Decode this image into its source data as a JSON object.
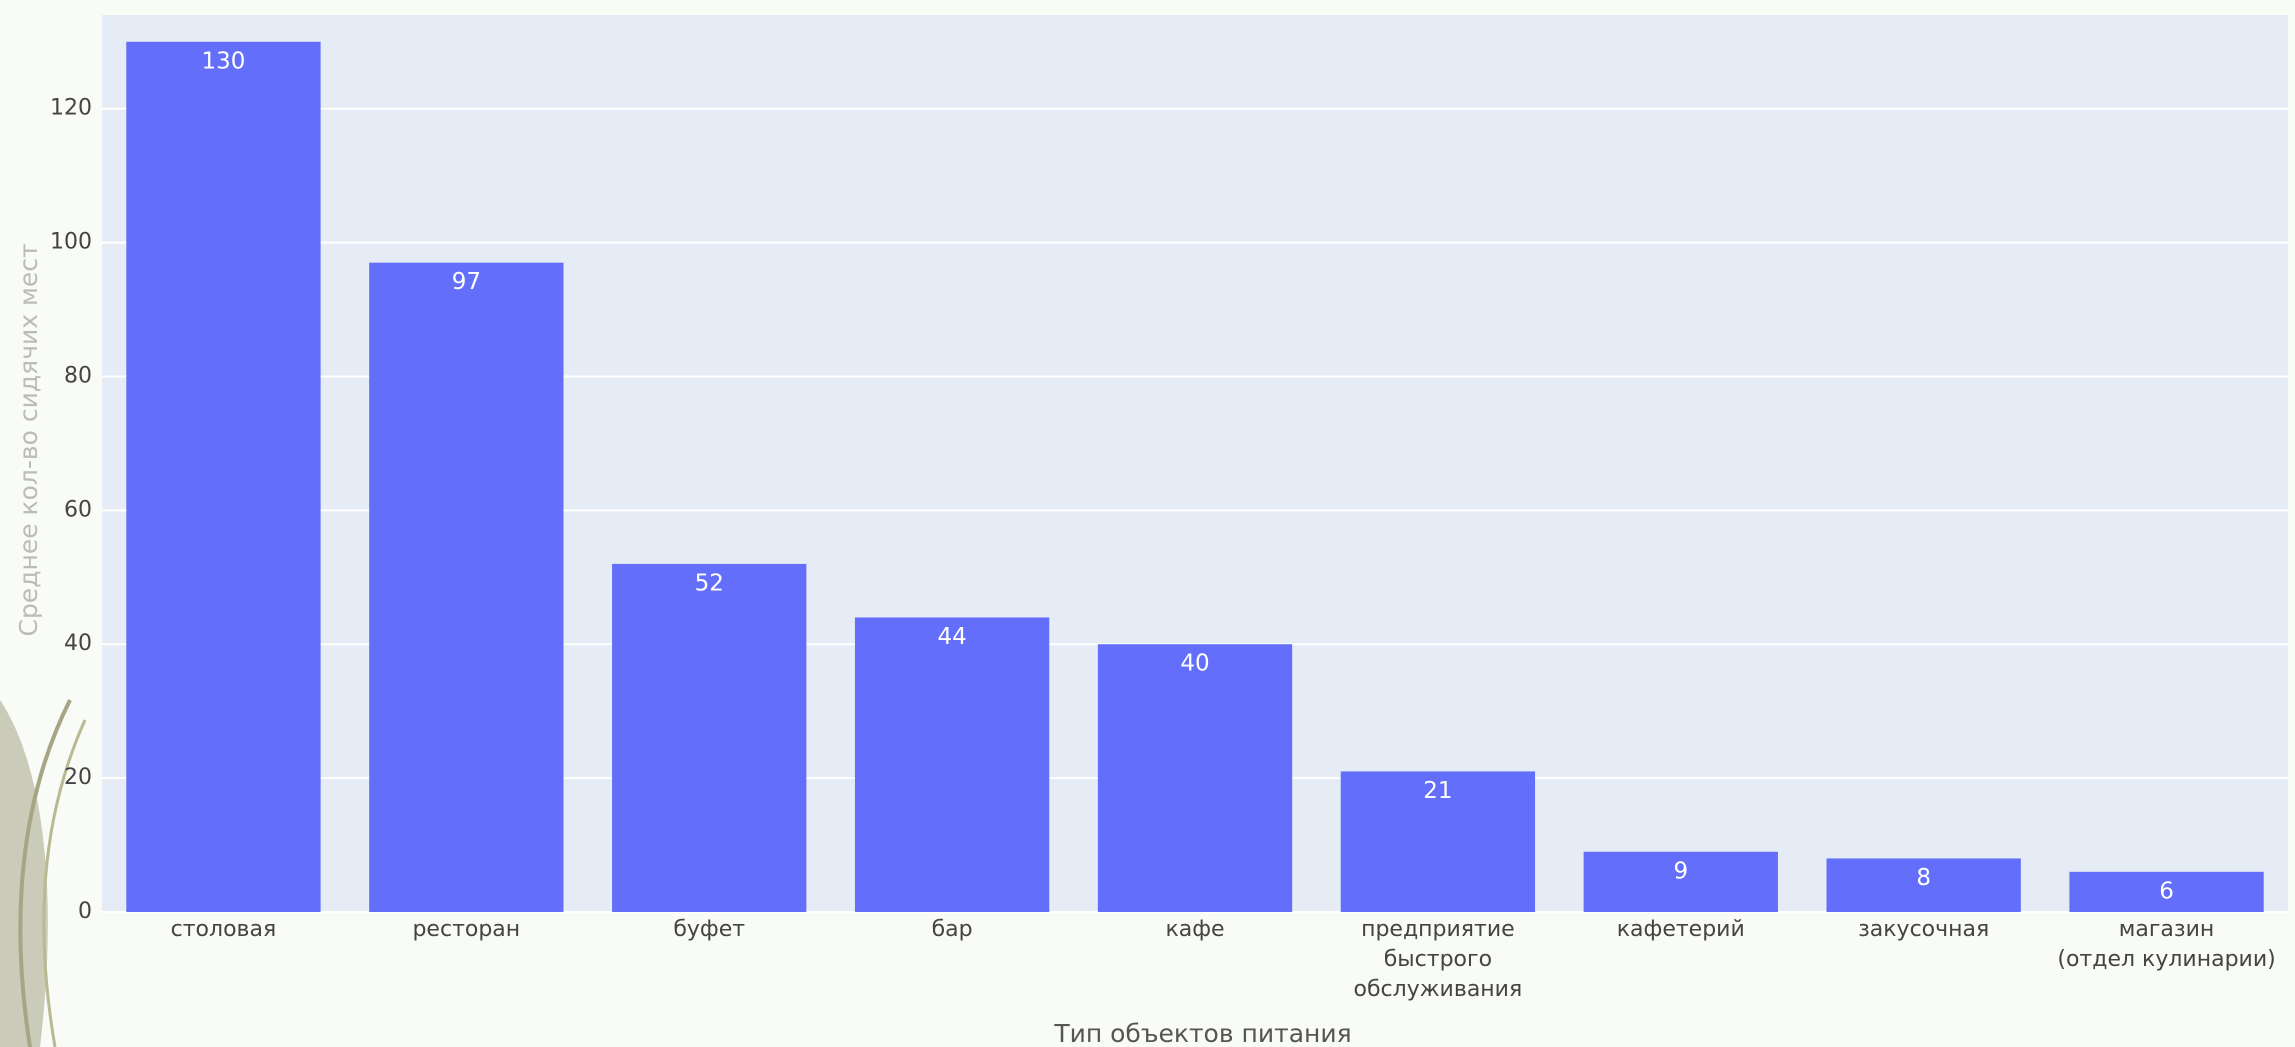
{
  "chart_data": {
    "type": "bar",
    "y_axis_title": "Среднее кол-во сидячих мест",
    "x_axis_title": "Тип объектов питания",
    "categories": [
      "столовая",
      "ресторан",
      "буфет",
      "бар",
      "кафе",
      "предприятие\nбыстрого\nобслуживания",
      "кафетерий",
      "закусочная",
      "магазин\n(отдел кулинарии)"
    ],
    "values": [
      130,
      97,
      52,
      44,
      40,
      21,
      9,
      8,
      6
    ],
    "color": "#636efa",
    "ylim": [
      0,
      134
    ],
    "yticks": [
      0,
      20,
      40,
      60,
      80,
      100,
      120
    ],
    "grid": true
  }
}
